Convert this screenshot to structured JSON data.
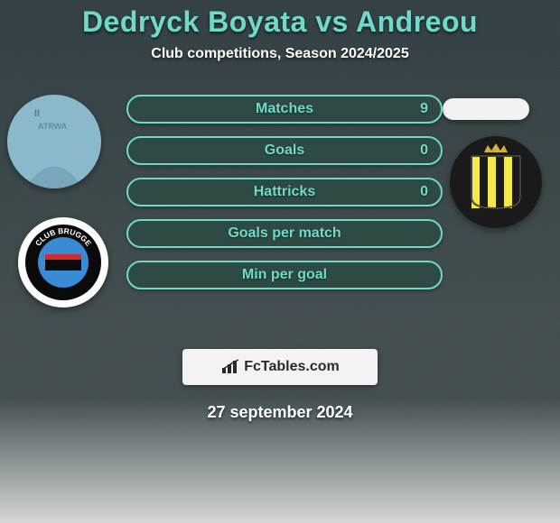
{
  "title": {
    "text": "Dedryck Boyata vs Andreou",
    "color": "#6fdacb",
    "fontsize": 32
  },
  "subtitle": {
    "text": "Club competitions, Season 2024/2025",
    "color": "#ffffff",
    "fontsize": 16
  },
  "background": {
    "top_color": "#2a3a3e",
    "mid_color": "#3c4a4c",
    "bottom_color": "#d8dadb",
    "fade_start": 440
  },
  "stats": {
    "rows": [
      {
        "label": "Matches",
        "left": "",
        "right": "9"
      },
      {
        "label": "Goals",
        "left": "",
        "right": "0"
      },
      {
        "label": "Hattricks",
        "left": "",
        "right": "0"
      },
      {
        "label": "Goals per match",
        "left": "",
        "right": ""
      },
      {
        "label": "Min per goal",
        "left": "",
        "right": ""
      }
    ],
    "row_bg": "#2f4a44",
    "row_border": "#6fdacb",
    "label_color": "#6fdacb",
    "value_color": "#6fdacb",
    "label_fontsize": 16,
    "value_fontsize": 16
  },
  "headshots": {
    "left_bg": "#8ab9cc",
    "right_bg": "#f2f2f2"
  },
  "badges": {
    "left": {
      "outer": "#ffffff",
      "ring": "#0a0a0a",
      "inner": "#3a8bd6",
      "text": "CLUB BRUGGE"
    },
    "right": {
      "outer": "#1a1a1a",
      "stripe1": "#f5e84a",
      "stripe2": "#1a1a1a",
      "crown": "#d4b13a"
    }
  },
  "fctables": {
    "bg": "#f3f3f3",
    "text": "FcTables.com",
    "text_color": "#2a2a2a",
    "fontsize": 16,
    "chart_color": "#2a2a2a"
  },
  "date": {
    "text": "27 september 2024",
    "color": "#ffffff",
    "fontsize": 18
  }
}
